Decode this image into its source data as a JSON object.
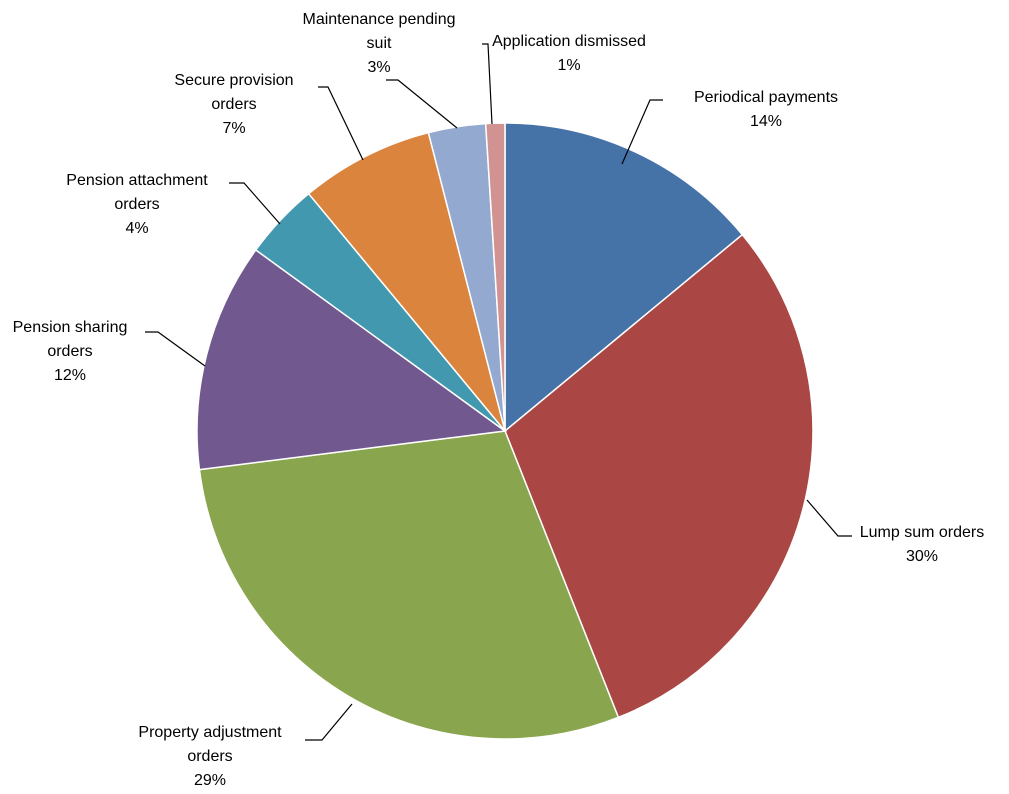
{
  "chart_data": {
    "type": "pie",
    "title": "",
    "start_angle_deg": 90,
    "direction": "clockwise",
    "slices": [
      {
        "label_lines": [
          "Periodical payments"
        ],
        "value": 14,
        "value_label": "14%",
        "color": "#4572A7"
      },
      {
        "label_lines": [
          "Lump sum orders"
        ],
        "value": 30,
        "value_label": "30%",
        "color": "#AA4643"
      },
      {
        "label_lines": [
          "Property adjustment",
          "orders"
        ],
        "value": 29,
        "value_label": "29%",
        "color": "#89A54E"
      },
      {
        "label_lines": [
          "Pension sharing",
          "orders"
        ],
        "value": 12,
        "value_label": "12%",
        "color": "#71588F"
      },
      {
        "label_lines": [
          "Pension attachment",
          "orders"
        ],
        "value": 4,
        "value_label": "4%",
        "color": "#4198AF"
      },
      {
        "label_lines": [
          "Secure provision",
          "orders"
        ],
        "value": 7,
        "value_label": "7%",
        "color": "#DB843D"
      },
      {
        "label_lines": [
          "Maintenance pending",
          "suit"
        ],
        "value": 3,
        "value_label": "3%",
        "color": "#93A9CF"
      },
      {
        "label_lines": [
          "Application dismissed"
        ],
        "value": 1,
        "value_label": "1%",
        "color": "#D19392"
      }
    ]
  }
}
